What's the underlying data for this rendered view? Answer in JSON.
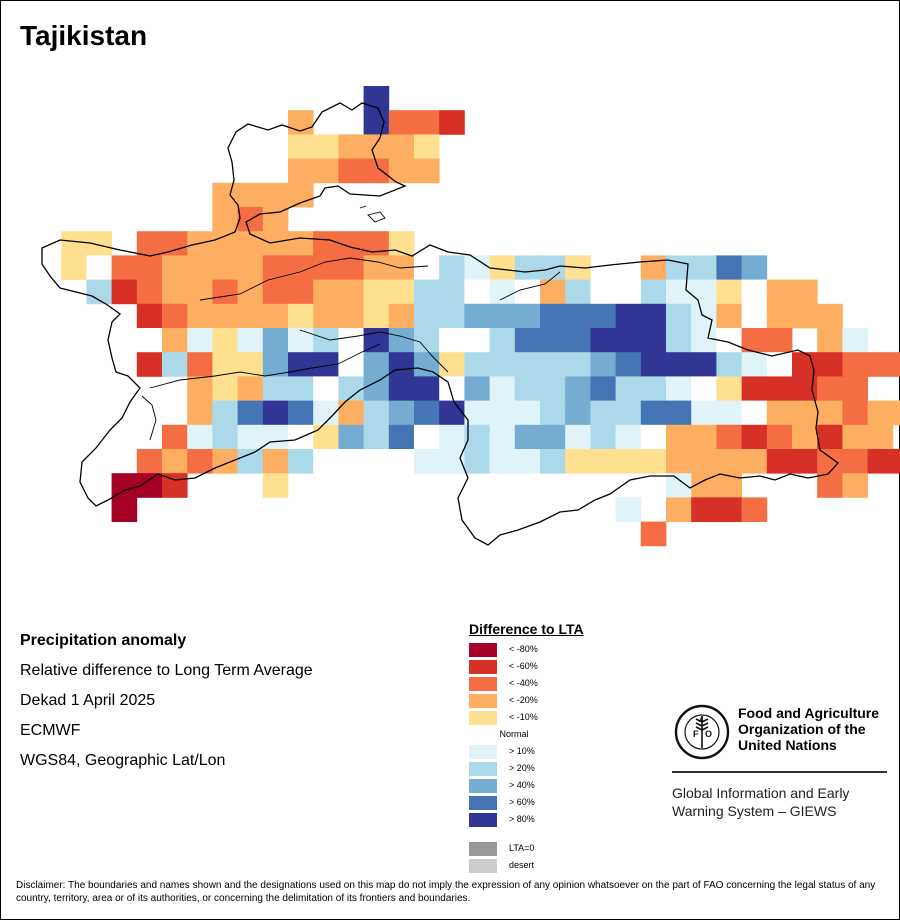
{
  "title": "Tajikistan",
  "info": {
    "heading": "Precipitation anomaly",
    "line1": "Relative difference to Long Term Average",
    "line2": "Dekad 1 April 2025",
    "line3": "ECMWF",
    "line4": "WGS84, Geographic Lat/Lon"
  },
  "legend": {
    "title": "Difference to LTA",
    "classes": [
      {
        "label": "< -80%",
        "color": "#a50026"
      },
      {
        "label": "< -60%",
        "color": "#d73027"
      },
      {
        "label": "< -40%",
        "color": "#f46d43"
      },
      {
        "label": "< -20%",
        "color": "#fdae61"
      },
      {
        "label": "< -10%",
        "color": "#fee090"
      },
      {
        "label": "Normal",
        "color": "#ffffff"
      },
      {
        "label": "> 10%",
        "color": "#e0f3f8"
      },
      {
        "label": "> 20%",
        "color": "#abd9e9"
      },
      {
        "label": "> 40%",
        "color": "#74add1"
      },
      {
        "label": "> 60%",
        "color": "#4575b4"
      },
      {
        "label": "> 80%",
        "color": "#313695"
      }
    ],
    "extra": [
      {
        "label": "LTA=0",
        "color": "#999999"
      },
      {
        "label": "desert",
        "color": "#cccccc"
      }
    ]
  },
  "organization": {
    "line1": "Food and Agriculture",
    "line2": "Organization of the",
    "line3": "United Nations",
    "giews1": "Global Information and Early",
    "giews2": "Warning System – GIEWS"
  },
  "disclaimer": "Disclaimer: The boundaries and names shown and the designations used on this map do not imply the expression of any opinion whatsoever on the part of FAO concerning the legal status of any country, territory, area or of its authorities, or concerning the delimitation of its frontiers and boundaries.",
  "map_grid": {
    "legend_key": {
      "A": "< -80%",
      "B": "< -60%",
      "C": "< -40%",
      "D": "< -20%",
      "E": "< -10%",
      "W": "Normal",
      "F": "> 10%",
      "G": "> 20%",
      "H": "> 40%",
      "I": "> 60%",
      "J": "> 80%"
    },
    "rows": [
      ".............J....................",
      "..........D..JCCB.................",
      "..........EEDDDE..................",
      "..........DDCCDD..................",
      ".......DDDD.......................",
      ".......DCD.........................",
      ".EE.CCDDDDDCCCE...................",
      ".EWCCDDDDCCCCDDWGFEGGE..DGGIH......",
      "..GBCDDCDCCDDEEGGWFWDGWWGFFEWDD....",
      "....BCDDDDEDDEDGGHHHIIIJJGFDWDDD...",
      "....WDFEFHFGWJHGWWGIIIJJJGFWCC.DF..",
      "....BGCEEHJJWHJHEGGGGGHIJJJGFWBBCCCCDE",
      "......DEDGGWGHJJWHFGGHIGGFWEBBBCC...",
      "......DGIJIFDGHIJFFFGHGGIIFFWDDDCDD...",
      ".....CFGFFWEHGIWFGFHHFGFWDDCBCDBDD...",
      "....CDCDGDGWWWWFFGFFGEEEEDDDDBBCCBB.C..",
      "...AAB...E...............FDD...CD.....",
      "...A...................F.DBBC..........",
      "........................C.............."
    ]
  }
}
